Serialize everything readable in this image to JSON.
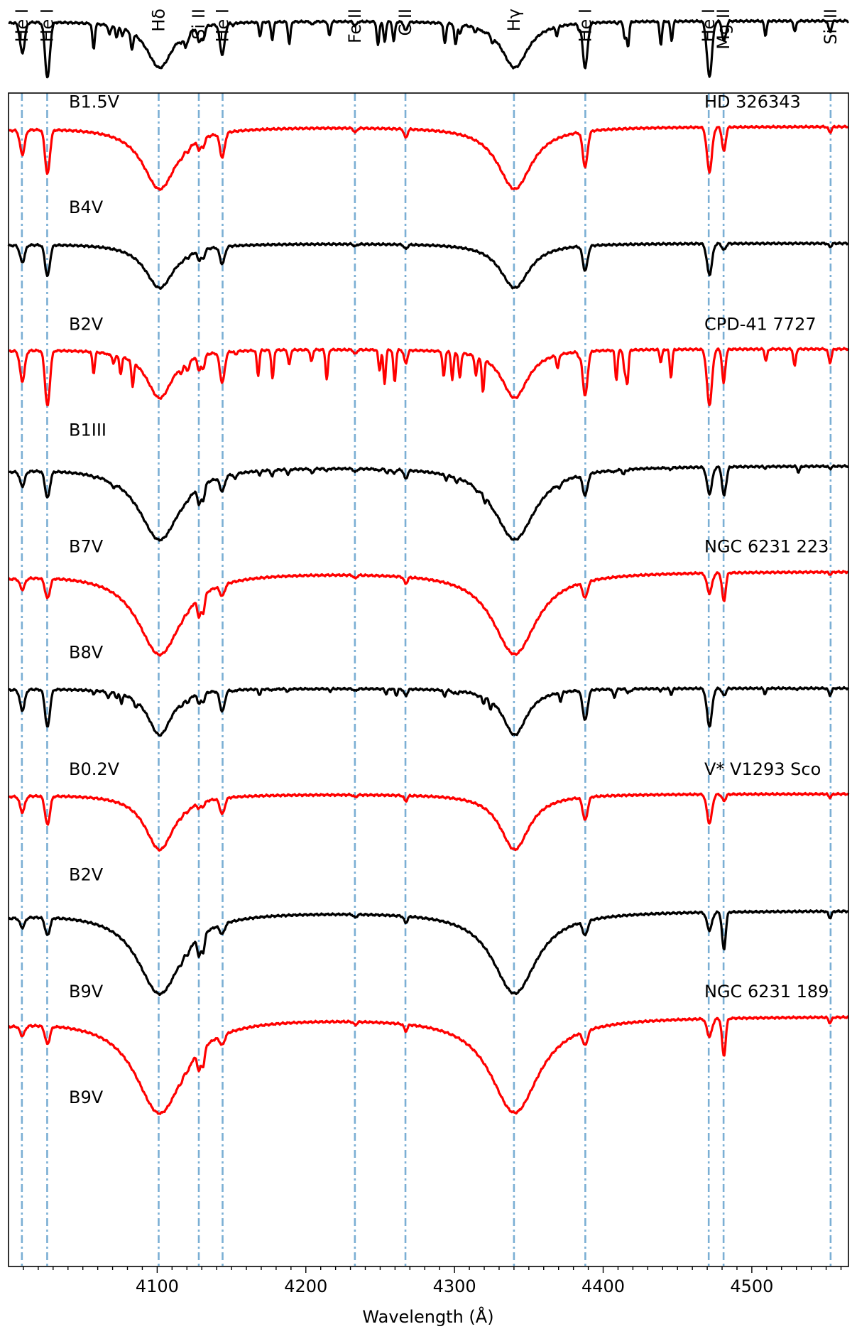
{
  "chart_data": {
    "type": "line",
    "xlabel": "Wavelength (Å)",
    "ylabel": "",
    "xlim": [
      4000,
      4565
    ],
    "xticks": [
      4100,
      4200,
      4300,
      4400,
      4500
    ],
    "xtick_labels": [
      "4100",
      "4200",
      "4300",
      "4400",
      "4500"
    ],
    "grid": false,
    "colors": {
      "observed": "#000000",
      "template": "#ff0000",
      "line_marker": "#7bafd4"
    },
    "line_markers": [
      {
        "label": "He I",
        "wavelength": 4009
      },
      {
        "label": "He I",
        "wavelength": 4026
      },
      {
        "label": "Hδ",
        "wavelength": 4101
      },
      {
        "label": "Si II",
        "wavelength": 4128
      },
      {
        "label": "He I",
        "wavelength": 4144
      },
      {
        "label": "Fe II",
        "wavelength": 4233
      },
      {
        "label": "C II",
        "wavelength": 4267
      },
      {
        "label": "Hγ",
        "wavelength": 4340
      },
      {
        "label": "He I",
        "wavelength": 4388
      },
      {
        "label": "He I",
        "wavelength": 4471
      },
      {
        "label": "Mg II",
        "wavelength": 4481
      },
      {
        "label": "Si III",
        "wavelength": 4553
      }
    ],
    "panels": [
      {
        "star": "HD 326343",
        "offset": 8.0,
        "black": {
          "type_label": "B1.5V",
          "strengths": {
            "h": 0.42,
            "hw": 11,
            "he": 0.5,
            "si2": 0.12,
            "mg": 0.18,
            "c2": 0.08,
            "fe": 0.04,
            "si3": 0.1,
            "metals": 0.28
          }
        },
        "red": {
          "type_label": "B4V",
          "strengths": {
            "h": 0.56,
            "hw": 14,
            "he": 0.4,
            "si2": 0.08,
            "mg": 0.22,
            "c2": 0.08,
            "fe": 0.04,
            "si3": 0.05,
            "metals": 0.04
          }
        }
      },
      {
        "star": "CPD-41 7727",
        "offset": 6.0,
        "black": {
          "type_label": "B2V",
          "strengths": {
            "h": 0.4,
            "hw": 12,
            "he": 0.28,
            "si2": 0.08,
            "mg": 0.06,
            "c2": 0.04,
            "fe": 0.02,
            "si3": 0.03,
            "metals": 0.03
          }
        },
        "red": {
          "type_label": "B1III",
          "strengths": {
            "h": 0.44,
            "hw": 11,
            "he": 0.5,
            "si2": 0.12,
            "mg": 0.2,
            "c2": 0.12,
            "fe": 0.04,
            "si3": 0.12,
            "metals": 0.3
          }
        }
      },
      {
        "star": "NGC 6231 223",
        "offset": 4.0,
        "black": {
          "type_label": "B7V",
          "strengths": {
            "h": 0.66,
            "hw": 17,
            "he": 0.24,
            "si2": 0.14,
            "mg": 0.26,
            "c2": 0.08,
            "fe": 0.03,
            "si3": 0.02,
            "metals": 0.06
          }
        },
        "red": {
          "type_label": "B8V",
          "strengths": {
            "h": 0.74,
            "hw": 18,
            "he": 0.18,
            "si2": 0.16,
            "mg": 0.26,
            "c2": 0.06,
            "fe": 0.03,
            "si3": 0.02,
            "metals": 0.03
          }
        }
      },
      {
        "star": "V* V1293 Sco",
        "offset": 2.0,
        "black": {
          "type_label": "B0.2V",
          "strengths": {
            "h": 0.42,
            "hw": 10,
            "he": 0.34,
            "si2": 0.08,
            "mg": 0.06,
            "c2": 0.06,
            "fe": 0.02,
            "si3": 0.06,
            "metals": 0.08
          }
        },
        "red": {
          "type_label": "B2V",
          "strengths": {
            "h": 0.5,
            "hw": 12,
            "he": 0.26,
            "si2": 0.04,
            "mg": 0.06,
            "c2": 0.05,
            "fe": 0.02,
            "si3": 0.03,
            "metals": 0.03
          }
        }
      },
      {
        "star": "NGC 6231 189",
        "offset": 0.0,
        "black": {
          "type_label": "B9V",
          "strengths": {
            "h": 0.74,
            "hw": 18,
            "he": 0.16,
            "si2": 0.16,
            "mg": 0.34,
            "c2": 0.06,
            "fe": 0.03,
            "si3": 0.06,
            "metals": 0.03
          }
        },
        "red": {
          "type_label": "B9V",
          "strengths": {
            "h": 0.86,
            "hw": 20,
            "he": 0.16,
            "si2": 0.16,
            "mg": 0.34,
            "c2": 0.06,
            "fe": 0.03,
            "si3": 0.05,
            "metals": 0.03
          }
        }
      }
    ]
  }
}
